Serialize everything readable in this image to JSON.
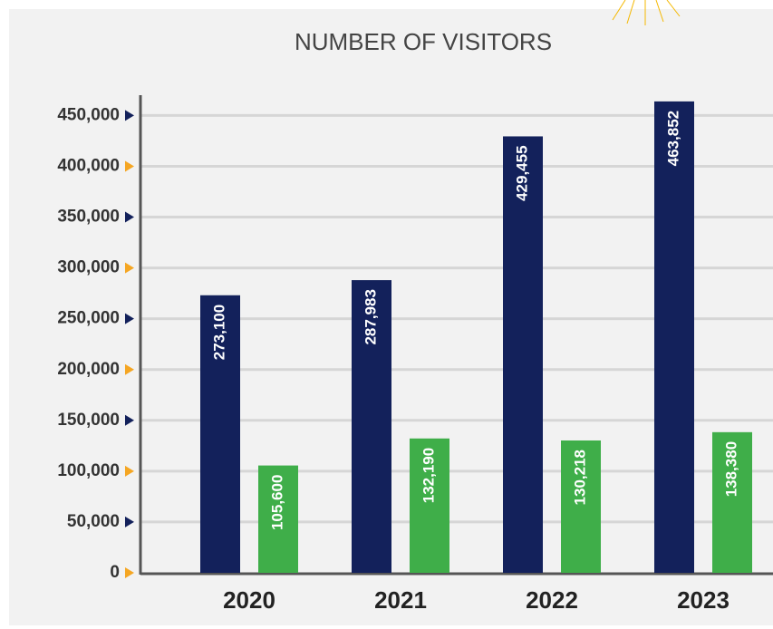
{
  "chart_data": {
    "type": "bar",
    "title": "NUMBER OF VISITORS",
    "categories": [
      "2020",
      "2021",
      "2022",
      "2023"
    ],
    "series": [
      {
        "color": "#13215b",
        "values": [
          273100,
          287983,
          429455,
          463852
        ],
        "value_labels": [
          "273,100",
          "287,983",
          "429,455",
          "463,852"
        ]
      },
      {
        "color": "#3fae49",
        "values": [
          105600,
          132190,
          130218,
          138380
        ],
        "value_labels": [
          "105,600",
          "132,190",
          "130,218",
          "138,380"
        ]
      }
    ],
    "ylim": [
      0,
      470000
    ],
    "yticks": [
      0,
      {
        "value": 50000,
        "label": "50,000"
      },
      {
        "value": 100000,
        "label": "100,000"
      },
      {
        "value": 150000,
        "label": "150,000"
      },
      {
        "value": 200000,
        "label": "200,000"
      },
      {
        "value": 250000,
        "label": "250,000"
      },
      {
        "value": 300000,
        "label": "300,000"
      },
      {
        "value": 350000,
        "label": "350,000"
      },
      {
        "value": 400000,
        "label": "400,000"
      },
      {
        "value": 450000,
        "label": "450,000"
      }
    ],
    "grid": true
  }
}
